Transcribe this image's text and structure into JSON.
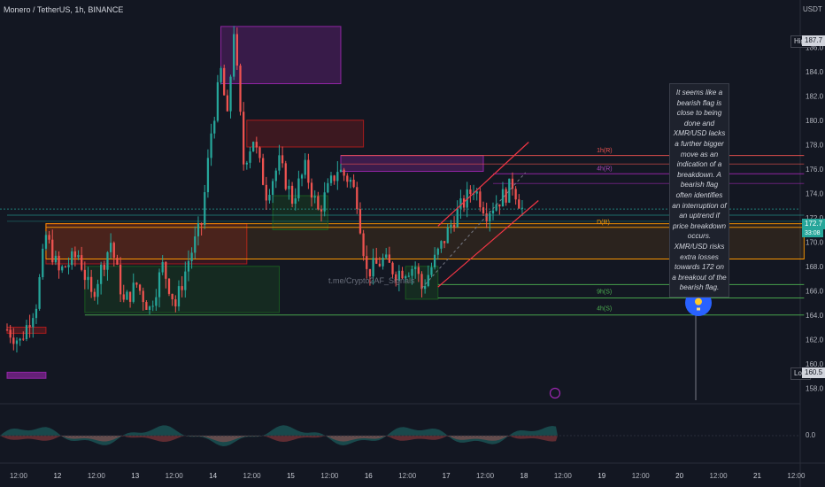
{
  "header": {
    "title": "Monero / TetherUS, 1h, BINANCE",
    "currency": "USDT"
  },
  "watermark": "t.me/Crypto2AF_Signals",
  "note": {
    "text": "It seems like a bearish flag is close to being done and XMR/USD lacks a further bigger move as an indication of a breakdown. A bearish flag often identifies an interruption of an uptrend if price breakdown occurs. XMR/USD risks extra losses towards 172 on a breakout of the bearish flag."
  },
  "price_tags": {
    "high_label": "High",
    "high_value": "187.7",
    "current_value": "172.7",
    "countdown": "33:08",
    "low_label": "Low",
    "low_value": "160.5"
  },
  "level_labels": [
    "1h(R)",
    "4h(R)",
    "D(R)",
    "9h(S)",
    "4h(S)"
  ],
  "colors": {
    "background": "#131722",
    "bull": "#26a69a",
    "bear": "#ef5350",
    "channel": "#f23645",
    "zone_purple": "#9c27b0",
    "zone_red": "#b71c1c",
    "zone_green": "#1b5e20",
    "zone_orange": "#ff9800",
    "idea_badge": "#2962ff"
  },
  "chart_data": {
    "type": "candlestick",
    "title": "Monero / TetherUS, 1h, BINANCE",
    "ylim": [
      157,
      189
    ],
    "y_ticks": [
      158.0,
      160.0,
      162.0,
      164.0,
      166.0,
      168.0,
      170.0,
      172.0,
      174.0,
      176.0,
      178.0,
      180.0,
      182.0,
      184.0,
      186.0
    ],
    "x_ticks": [
      "12:00",
      "12",
      "12:00",
      "13",
      "12:00",
      "14",
      "12:00",
      "15",
      "12:00",
      "16",
      "12:00",
      "17",
      "12:00",
      "18",
      "12:00",
      "19",
      "12:00",
      "20",
      "12:00",
      "21",
      "12:00"
    ],
    "day_start_hours": [
      0,
      12,
      24,
      36,
      48,
      60,
      72,
      84,
      96,
      108,
      120,
      132,
      144,
      156,
      168,
      180,
      192,
      204,
      216,
      228,
      240
    ],
    "key_points": [
      {
        "t": 0,
        "p": 162.8
      },
      {
        "t": 4,
        "p": 161.8
      },
      {
        "t": 9,
        "p": 165.0
      },
      {
        "t": 12,
        "p": 170.5
      },
      {
        "t": 16,
        "p": 167.5
      },
      {
        "t": 22,
        "p": 169.0
      },
      {
        "t": 26,
        "p": 165.5
      },
      {
        "t": 32,
        "p": 170.0
      },
      {
        "t": 36,
        "p": 165.0
      },
      {
        "t": 40,
        "p": 166.5
      },
      {
        "t": 44,
        "p": 164.5
      },
      {
        "t": 48,
        "p": 168.0
      },
      {
        "t": 52,
        "p": 164.8
      },
      {
        "t": 56,
        "p": 168.5
      },
      {
        "t": 60,
        "p": 171.5
      },
      {
        "t": 63,
        "p": 179.0
      },
      {
        "t": 66,
        "p": 184.0
      },
      {
        "t": 68,
        "p": 180.0
      },
      {
        "t": 70,
        "p": 187.5
      },
      {
        "t": 73,
        "p": 176.5
      },
      {
        "t": 76,
        "p": 178.5
      },
      {
        "t": 80,
        "p": 174.0
      },
      {
        "t": 84,
        "p": 176.5
      },
      {
        "t": 88,
        "p": 173.5
      },
      {
        "t": 92,
        "p": 176.0
      },
      {
        "t": 96,
        "p": 172.5
      },
      {
        "t": 102,
        "p": 176.0
      },
      {
        "t": 106,
        "p": 175.0
      },
      {
        "t": 108,
        "p": 173.5
      },
      {
        "t": 111,
        "p": 167.5
      },
      {
        "t": 116,
        "p": 168.5
      },
      {
        "t": 120,
        "p": 167.5
      },
      {
        "t": 126,
        "p": 168.0
      },
      {
        "t": 128,
        "p": 166.2
      },
      {
        "t": 132,
        "p": 168.5
      },
      {
        "t": 138,
        "p": 172.0
      },
      {
        "t": 144,
        "p": 174.5
      },
      {
        "t": 148,
        "p": 172.5
      },
      {
        "t": 154,
        "p": 174.0
      },
      {
        "t": 156,
        "p": 174.8
      },
      {
        "t": 159,
        "p": 172.7
      }
    ],
    "y_high": 187.7,
    "y_low": 160.5,
    "y_last": 172.7,
    "y_data_high": 187.9,
    "x_data_last": 159,
    "oscillator": {
      "y_tick": "0.0"
    }
  }
}
